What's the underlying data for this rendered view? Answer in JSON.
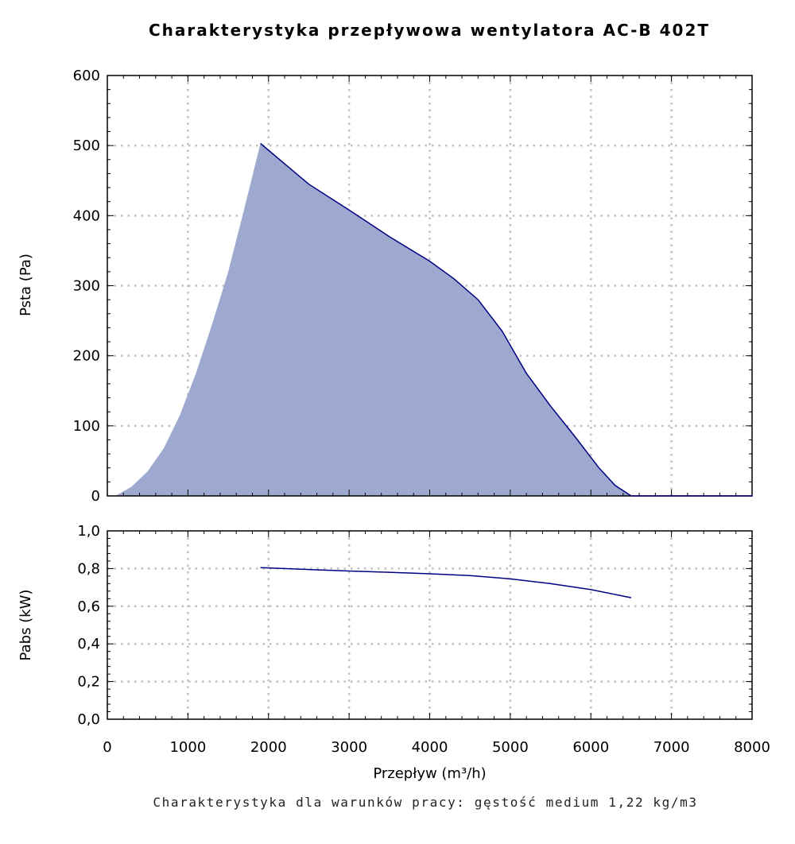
{
  "page": {
    "title": "Charakterystyka przepływowa wentylatora AC-B 402T",
    "footnote": "Charakterystyka dla warunków pracy: gęstość medium 1,22 kg/m3"
  },
  "colors": {
    "fill": "#9ea9cf",
    "line": "#000080",
    "grid": "#c0c0c0"
  },
  "chart_data": [
    {
      "type": "area",
      "title": "Charakterystyka przepływowa wentylatora AC-B 402T",
      "xlabel": "",
      "ylabel": "Psta (Pa)",
      "xlim": [
        0,
        8000
      ],
      "ylim": [
        0,
        600
      ],
      "x_ticks": [
        0,
        1000,
        2000,
        3000,
        4000,
        5000,
        6000,
        7000,
        8000
      ],
      "y_ticks": [
        0,
        100,
        200,
        300,
        400,
        500,
        600
      ],
      "y_tick_labels": [
        "0",
        "100",
        "200",
        "300",
        "400",
        "500",
        "600"
      ],
      "grid": true,
      "series": [
        {
          "x": [
            100,
            300,
            500,
            700,
            900,
            1100,
            1300,
            1500,
            1700,
            1900,
            2500,
            3000,
            3500,
            4000,
            4300,
            4600,
            4900,
            5200,
            5500,
            5800,
            6100,
            6300,
            6500
          ],
          "y": [
            0,
            13,
            35,
            68,
            115,
            175,
            245,
            320,
            410,
            503,
            445,
            408,
            370,
            335,
            310,
            280,
            235,
            175,
            128,
            85,
            40,
            15,
            0
          ]
        }
      ]
    },
    {
      "type": "line",
      "xlabel": "Przepływ (m³/h)",
      "ylabel": "Pabs (kW)",
      "xlim": [
        0,
        8000
      ],
      "ylim": [
        0,
        1.0
      ],
      "x_ticks": [
        0,
        1000,
        2000,
        3000,
        4000,
        5000,
        6000,
        7000,
        8000
      ],
      "x_tick_labels": [
        "0",
        "1000",
        "2000",
        "3000",
        "4000",
        "5000",
        "6000",
        "7000",
        "8000"
      ],
      "y_ticks": [
        0,
        0.2,
        0.4,
        0.6,
        0.8,
        1.0
      ],
      "y_tick_labels": [
        "0,0",
        "0,2",
        "0,4",
        "0,6",
        "0,8",
        "1,0"
      ],
      "grid": true,
      "series": [
        {
          "x": [
            1900,
            2500,
            3000,
            3500,
            4000,
            4500,
            5000,
            5500,
            6000,
            6500
          ],
          "y": [
            0.805,
            0.795,
            0.787,
            0.78,
            0.772,
            0.763,
            0.745,
            0.72,
            0.688,
            0.645
          ]
        }
      ]
    }
  ]
}
